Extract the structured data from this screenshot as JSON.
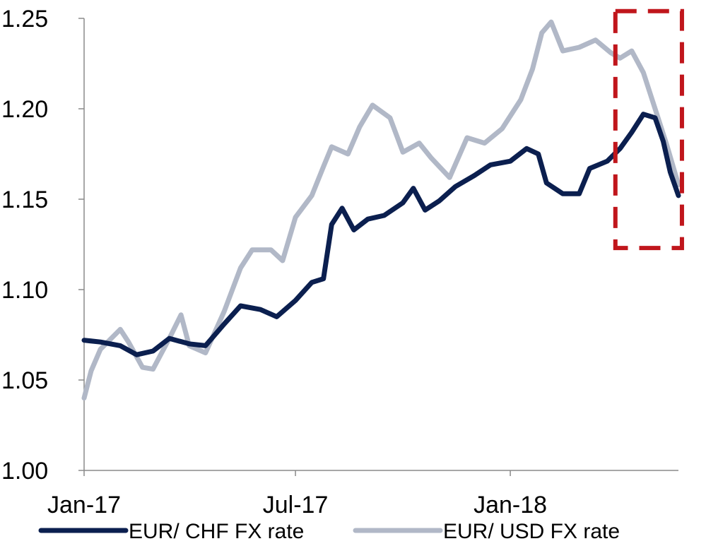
{
  "chart_data": {
    "type": "line",
    "title": "",
    "xlabel": "",
    "ylabel": "",
    "ylim": [
      1.0,
      1.25
    ],
    "yticks": [
      "1.00",
      "1.05",
      "1.10",
      "1.15",
      "1.20",
      "1.25"
    ],
    "xticks": [
      {
        "label": "Jan-17",
        "date": "2017-01-01"
      },
      {
        "label": "Jul-17",
        "date": "2017-07-01"
      },
      {
        "label": "Jan-18",
        "date": "2018-01-01"
      }
    ],
    "xlim": [
      "2017-01-01",
      "2018-05-25"
    ],
    "grid": false,
    "legend_position": "bottom",
    "series": [
      {
        "name": "EUR/ CHF FX rate",
        "color": "#0b1f4f",
        "points": [
          [
            "2017-01-01",
            1.072
          ],
          [
            "2017-01-15",
            1.071
          ],
          [
            "2017-02-01",
            1.069
          ],
          [
            "2017-02-15",
            1.064
          ],
          [
            "2017-03-01",
            1.066
          ],
          [
            "2017-03-15",
            1.073
          ],
          [
            "2017-04-01",
            1.07
          ],
          [
            "2017-04-15",
            1.069
          ],
          [
            "2017-05-01",
            1.081
          ],
          [
            "2017-05-15",
            1.091
          ],
          [
            "2017-06-01",
            1.089
          ],
          [
            "2017-06-15",
            1.085
          ],
          [
            "2017-07-01",
            1.094
          ],
          [
            "2017-07-15",
            1.104
          ],
          [
            "2017-07-25",
            1.106
          ],
          [
            "2017-08-01",
            1.136
          ],
          [
            "2017-08-10",
            1.145
          ],
          [
            "2017-08-20",
            1.133
          ],
          [
            "2017-09-01",
            1.139
          ],
          [
            "2017-09-15",
            1.141
          ],
          [
            "2017-10-01",
            1.148
          ],
          [
            "2017-10-10",
            1.156
          ],
          [
            "2017-10-20",
            1.144
          ],
          [
            "2017-11-01",
            1.149
          ],
          [
            "2017-11-15",
            1.157
          ],
          [
            "2017-12-01",
            1.163
          ],
          [
            "2017-12-15",
            1.169
          ],
          [
            "2018-01-01",
            1.171
          ],
          [
            "2018-01-15",
            1.178
          ],
          [
            "2018-01-25",
            1.175
          ],
          [
            "2018-02-01",
            1.159
          ],
          [
            "2018-02-15",
            1.153
          ],
          [
            "2018-03-01",
            1.153
          ],
          [
            "2018-03-10",
            1.167
          ],
          [
            "2018-03-25",
            1.171
          ],
          [
            "2018-04-05",
            1.178
          ],
          [
            "2018-04-15",
            1.187
          ],
          [
            "2018-04-25",
            1.197
          ],
          [
            "2018-05-05",
            1.195
          ],
          [
            "2018-05-12",
            1.182
          ],
          [
            "2018-05-18",
            1.165
          ],
          [
            "2018-05-25",
            1.152
          ]
        ]
      },
      {
        "name": "EUR/ USD FX rate",
        "color": "#b1b8c7",
        "points": [
          [
            "2017-01-01",
            1.04
          ],
          [
            "2017-01-07",
            1.055
          ],
          [
            "2017-01-15",
            1.067
          ],
          [
            "2017-02-01",
            1.078
          ],
          [
            "2017-02-08",
            1.071
          ],
          [
            "2017-02-20",
            1.057
          ],
          [
            "2017-03-01",
            1.056
          ],
          [
            "2017-03-15",
            1.073
          ],
          [
            "2017-03-25",
            1.086
          ],
          [
            "2017-04-01",
            1.069
          ],
          [
            "2017-04-15",
            1.065
          ],
          [
            "2017-05-01",
            1.088
          ],
          [
            "2017-05-15",
            1.112
          ],
          [
            "2017-05-25",
            1.122
          ],
          [
            "2017-06-10",
            1.122
          ],
          [
            "2017-06-20",
            1.116
          ],
          [
            "2017-07-01",
            1.14
          ],
          [
            "2017-07-15",
            1.152
          ],
          [
            "2017-07-25",
            1.168
          ],
          [
            "2017-08-01",
            1.179
          ],
          [
            "2017-08-15",
            1.175
          ],
          [
            "2017-08-25",
            1.19
          ],
          [
            "2017-09-05",
            1.202
          ],
          [
            "2017-09-20",
            1.195
          ],
          [
            "2017-10-01",
            1.176
          ],
          [
            "2017-10-15",
            1.181
          ],
          [
            "2017-10-25",
            1.173
          ],
          [
            "2017-11-10",
            1.162
          ],
          [
            "2017-11-25",
            1.184
          ],
          [
            "2017-12-10",
            1.181
          ],
          [
            "2017-12-25",
            1.189
          ],
          [
            "2018-01-10",
            1.205
          ],
          [
            "2018-01-20",
            1.222
          ],
          [
            "2018-01-28",
            1.242
          ],
          [
            "2018-02-05",
            1.248
          ],
          [
            "2018-02-15",
            1.232
          ],
          [
            "2018-03-01",
            1.234
          ],
          [
            "2018-03-15",
            1.238
          ],
          [
            "2018-03-28",
            1.231
          ],
          [
            "2018-04-05",
            1.228
          ],
          [
            "2018-04-15",
            1.232
          ],
          [
            "2018-04-25",
            1.22
          ],
          [
            "2018-05-05",
            1.2
          ],
          [
            "2018-05-15",
            1.18
          ],
          [
            "2018-05-25",
            1.158
          ]
        ]
      }
    ],
    "highlight_box": {
      "x_range": [
        "2018-04-01",
        "2018-05-28"
      ],
      "y_range": [
        1.123,
        1.254
      ],
      "color": "#c0161c",
      "style": "dashed"
    }
  }
}
